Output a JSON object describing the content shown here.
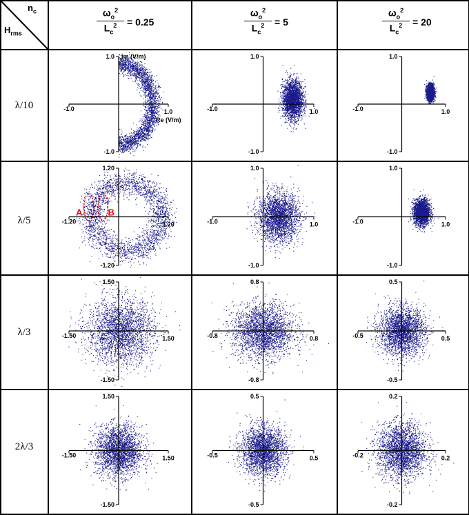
{
  "header": {
    "corner_top": "n",
    "corner_top_sub": "c",
    "corner_bottom": "H",
    "corner_bottom_sub": "rms",
    "columns": [
      {
        "num": "ω",
        "num_sub": "o",
        "num_sup": "2",
        "den": "L",
        "den_sub": "c",
        "den_sup": "2",
        "value": "= 0.25"
      },
      {
        "num": "ω",
        "num_sub": "o",
        "num_sup": "2",
        "den": "L",
        "den_sub": "c",
        "den_sup": "2",
        "value": "= 5"
      },
      {
        "num": "ω",
        "num_sub": "o",
        "num_sup": "2",
        "den": "L",
        "den_sub": "c",
        "den_sup": "2",
        "value": "= 20"
      }
    ]
  },
  "rows": [
    "λ/10",
    "λ/5",
    "λ/3",
    "2λ/3"
  ],
  "colors": {
    "points": "#1a1a8c",
    "annotation": "#e01010",
    "grid": "#000000"
  },
  "chart_data": [
    {
      "type": "scatter",
      "row": 0,
      "col": 0,
      "shape": "crescent",
      "center": [
        0.5,
        0.0
      ],
      "radius": 0.72,
      "spread": 0.08,
      "arc_deg": [
        -90,
        90
      ],
      "xlim": [
        -1.0,
        1.0
      ],
      "ylim": [
        -1.0,
        1.0
      ],
      "tick_labels": {
        "x_left": "-1.0",
        "x_right": "1.0",
        "y_top": "1.0",
        "y_bottom": "-1.0"
      },
      "xlabel": "Re (V/m)",
      "ylabel": "Im (V/m)"
    },
    {
      "type": "scatter",
      "row": 0,
      "col": 1,
      "shape": "gaussian",
      "center": [
        0.58,
        0.1
      ],
      "sigma": [
        0.1,
        0.2
      ],
      "xlim": [
        -1.0,
        1.0
      ],
      "ylim": [
        -1.0,
        1.0
      ],
      "tick_labels": {
        "x_left": "-1.0",
        "x_right": "1.0",
        "y_top": "1.0",
        "y_bottom": "-1.0"
      }
    },
    {
      "type": "scatter",
      "row": 0,
      "col": 2,
      "shape": "gaussian",
      "center": [
        0.65,
        0.25
      ],
      "sigma": [
        0.04,
        0.08
      ],
      "xlim": [
        -1.0,
        1.0
      ],
      "ylim": [
        -1.0,
        1.0
      ],
      "tick_labels": {
        "x_left": "-1.0",
        "x_right": "1.0",
        "y_top": "1.0",
        "y_bottom": "-1.0"
      }
    },
    {
      "type": "scatter",
      "row": 1,
      "col": 0,
      "shape": "ring",
      "center": [
        0.2,
        0.0
      ],
      "radius": 0.85,
      "spread": 0.15,
      "xlim": [
        -1.2,
        1.2
      ],
      "ylim": [
        -1.2,
        1.2
      ],
      "tick_labels": {
        "x_left": "-1.20",
        "x_right": "1.20",
        "y_top": "1.20",
        "y_bottom": "-1.20"
      },
      "annotations": [
        {
          "label": "A",
          "x": -0.72,
          "y": 0.0
        },
        {
          "label": "B",
          "x": -0.38,
          "y": 0.0
        }
      ]
    },
    {
      "type": "scatter",
      "row": 1,
      "col": 1,
      "shape": "gaussian",
      "center": [
        0.3,
        0.0
      ],
      "sigma": [
        0.2,
        0.25
      ],
      "xlim": [
        -1.0,
        1.0
      ],
      "ylim": [
        -1.0,
        1.0
      ],
      "tick_labels": {
        "x_left": "-1.0",
        "x_right": "1.0",
        "y_top": "1.0",
        "y_bottom": "-1.0"
      }
    },
    {
      "type": "scatter",
      "row": 1,
      "col": 2,
      "shape": "gaussian",
      "center": [
        0.45,
        0.1
      ],
      "sigma": [
        0.09,
        0.13
      ],
      "xlim": [
        -1.0,
        1.0
      ],
      "ylim": [
        -1.0,
        1.0
      ],
      "tick_labels": {
        "x_left": "-1.0",
        "x_right": "1.0",
        "y_top": "1.0",
        "y_bottom": "-1.0"
      }
    },
    {
      "type": "scatter",
      "row": 2,
      "col": 0,
      "shape": "gaussian",
      "center": [
        0.05,
        0.0
      ],
      "sigma": [
        0.5,
        0.5
      ],
      "xlim": [
        -1.5,
        1.5
      ],
      "ylim": [
        -1.5,
        1.5
      ],
      "tick_labels": {
        "x_left": "-1.50",
        "x_right": "1.50",
        "y_top": "1.50",
        "y_bottom": "-1.50"
      }
    },
    {
      "type": "scatter",
      "row": 2,
      "col": 1,
      "shape": "gaussian",
      "center": [
        0.0,
        0.0
      ],
      "sigma": [
        0.24,
        0.22
      ],
      "xlim": [
        -0.8,
        0.8
      ],
      "ylim": [
        -0.8,
        0.8
      ],
      "tick_labels": {
        "x_left": "-0.8",
        "x_right": "0.8",
        "y_top": "0.8",
        "y_bottom": "-0.8"
      }
    },
    {
      "type": "scatter",
      "row": 2,
      "col": 2,
      "shape": "gaussian",
      "center": [
        0.0,
        0.0
      ],
      "sigma": [
        0.13,
        0.12
      ],
      "xlim": [
        -0.5,
        0.5
      ],
      "ylim": [
        -0.5,
        0.5
      ],
      "tick_labels": {
        "x_left": "-0.5",
        "x_right": "0.5",
        "y_top": "0.5",
        "y_bottom": "-0.5"
      }
    },
    {
      "type": "scatter",
      "row": 3,
      "col": 0,
      "shape": "gaussian",
      "center": [
        0.0,
        0.0
      ],
      "sigma": [
        0.35,
        0.35
      ],
      "xlim": [
        -1.5,
        1.5
      ],
      "ylim": [
        -1.5,
        1.5
      ],
      "tick_labels": {
        "x_left": "-1.50",
        "x_right": "1.50",
        "y_top": "1.50",
        "y_bottom": "-1.50"
      }
    },
    {
      "type": "scatter",
      "row": 3,
      "col": 1,
      "shape": "gaussian",
      "center": [
        0.0,
        0.0
      ],
      "sigma": [
        0.11,
        0.11
      ],
      "xlim": [
        -0.5,
        0.5
      ],
      "ylim": [
        -0.5,
        0.5
      ],
      "tick_labels": {
        "x_left": "-0.5",
        "x_right": "0.5",
        "y_top": "0.5",
        "y_bottom": "-0.5"
      }
    },
    {
      "type": "scatter",
      "row": 3,
      "col": 2,
      "shape": "gaussian",
      "center": [
        0.0,
        0.0
      ],
      "sigma": [
        0.055,
        0.05
      ],
      "xlim": [
        -0.2,
        0.2
      ],
      "ylim": [
        -0.2,
        0.2
      ],
      "tick_labels": {
        "x_left": "-0.2",
        "x_right": "0.2",
        "y_top": "0.2",
        "y_bottom": "-0.2"
      }
    }
  ]
}
